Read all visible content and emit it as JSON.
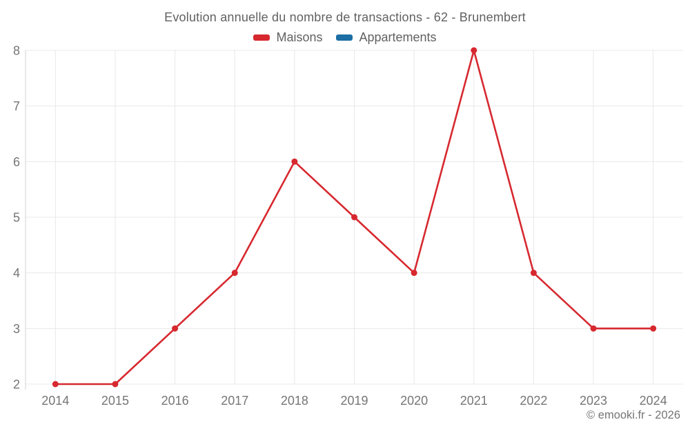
{
  "header": {
    "title": "Evolution annuelle du nombre de transactions - 62 - Brunembert"
  },
  "footer": {
    "copyright": "© emooki.fr - 2026"
  },
  "chart_data": {
    "type": "line",
    "title": "Evolution annuelle du nombre de transactions - 62 - Brunembert",
    "categories": [
      "2014",
      "2015",
      "2016",
      "2017",
      "2018",
      "2019",
      "2020",
      "2021",
      "2022",
      "2023",
      "2024"
    ],
    "series": [
      {
        "name": "Maisons",
        "color": "#d7282f",
        "values": [
          2,
          2,
          3,
          4,
          6,
          5,
          4,
          8,
          4,
          3,
          3
        ]
      },
      {
        "name": "Appartements",
        "color": "#1c6ea4",
        "values": []
      }
    ],
    "xlabel": "",
    "ylabel": "",
    "ylim": [
      2,
      8
    ],
    "yticks": [
      2,
      3,
      4,
      5,
      6,
      7,
      8
    ],
    "grid": true,
    "legend_position": "top",
    "marker": "circle",
    "colors": {
      "grid": "#e8e8e8",
      "axis": "#d0d0d0",
      "tick_label": "#757575",
      "title": "#616161"
    }
  }
}
